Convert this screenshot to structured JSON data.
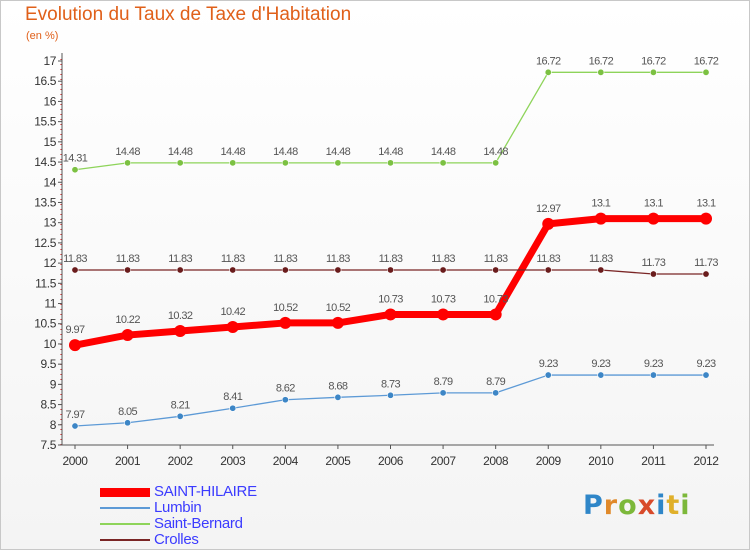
{
  "title": "Evolution du Taux de Taxe d'Habitation",
  "subtitle": "(en %)",
  "logo": {
    "text": "Proxiti",
    "letters": [
      {
        "ch": "P",
        "color": "#2f86c8"
      },
      {
        "ch": "r",
        "color": "#e0892a"
      },
      {
        "ch": "o",
        "color": "#7cb83a"
      },
      {
        "ch": "x",
        "color": "#d84a2a"
      },
      {
        "ch": "i",
        "color": "#2f86c8"
      },
      {
        "ch": "t",
        "color": "#e0b02a"
      },
      {
        "ch": "i",
        "color": "#7cb83a"
      }
    ]
  },
  "chart_data": {
    "type": "line",
    "title": "Evolution du Taux de Taxe d'Habitation",
    "ylabel": "(en %)",
    "xlabel": "",
    "ylim": [
      7.5,
      17
    ],
    "yticks": [
      "7.5",
      "8",
      "8.5",
      "9",
      "9.5",
      "10",
      "10.5",
      "11",
      "11.5",
      "12",
      "12.5",
      "13",
      "13.5",
      "14",
      "14.5",
      "15",
      "15.5",
      "16",
      "16.5",
      "17"
    ],
    "x": [
      "2000",
      "2001",
      "2002",
      "2003",
      "2004",
      "2005",
      "2006",
      "2007",
      "2008",
      "2009",
      "2010",
      "2011",
      "2012"
    ],
    "grid": false,
    "legend_position": "bottom-left",
    "series": [
      {
        "name": "Saint-Bernard",
        "color": "#8ed45a",
        "marker": "#7cc142",
        "width": 1.3,
        "values": [
          14.31,
          14.48,
          14.48,
          14.48,
          14.48,
          14.48,
          14.48,
          14.48,
          14.48,
          16.72,
          16.72,
          16.72,
          16.72
        ],
        "labels": [
          "14.31",
          "14.48",
          "14.48",
          "14.48",
          "14.48",
          "14.48",
          "14.48",
          "14.48",
          "14.48",
          "16.72",
          "16.72",
          "16.72",
          "16.72"
        ]
      },
      {
        "name": "SAINT-HILAIRE",
        "color": "#ff0000",
        "marker": "#ff0000",
        "width": 7,
        "values": [
          9.97,
          10.22,
          10.32,
          10.42,
          10.52,
          10.52,
          10.73,
          10.73,
          10.73,
          12.97,
          13.1,
          13.1,
          13.1
        ],
        "labels": [
          "9.97",
          "10.22",
          "10.32",
          "10.42",
          "10.52",
          "10.52",
          "10.73",
          "10.73",
          "10.73",
          "12.97",
          "13.1",
          "13.1",
          "13.1"
        ]
      },
      {
        "name": "Crolles",
        "color": "#7a2525",
        "marker": "#6a1c1c",
        "width": 1.3,
        "values": [
          11.83,
          11.83,
          11.83,
          11.83,
          11.83,
          11.83,
          11.83,
          11.83,
          11.83,
          11.83,
          11.83,
          11.73,
          11.73
        ],
        "labels": [
          "11.83",
          "11.83",
          "11.83",
          "11.83",
          "11.83",
          "11.83",
          "11.83",
          "11.83",
          "11.83",
          "11.83",
          "11.83",
          "11.73",
          "11.73"
        ]
      },
      {
        "name": "Lumbin",
        "color": "#5d9ad6",
        "marker": "#3d86c6",
        "width": 1.3,
        "values": [
          7.97,
          8.05,
          8.21,
          8.41,
          8.62,
          8.68,
          8.73,
          8.79,
          8.79,
          9.23,
          9.23,
          9.23,
          9.23
        ],
        "labels": [
          "7.97",
          "8.05",
          "8.21",
          "8.41",
          "8.62",
          "8.68",
          "8.73",
          "8.79",
          "8.79",
          "9.23",
          "9.23",
          "9.23",
          "9.23"
        ]
      }
    ]
  },
  "legend": [
    {
      "name": "SAINT-HILAIRE",
      "color": "#ff0000",
      "thickness": 9
    },
    {
      "name": "Lumbin",
      "color": "#5d9ad6",
      "thickness": 2
    },
    {
      "name": "Saint-Bernard",
      "color": "#8ed45a",
      "thickness": 2
    },
    {
      "name": "Crolles",
      "color": "#7a2525",
      "thickness": 2
    }
  ]
}
